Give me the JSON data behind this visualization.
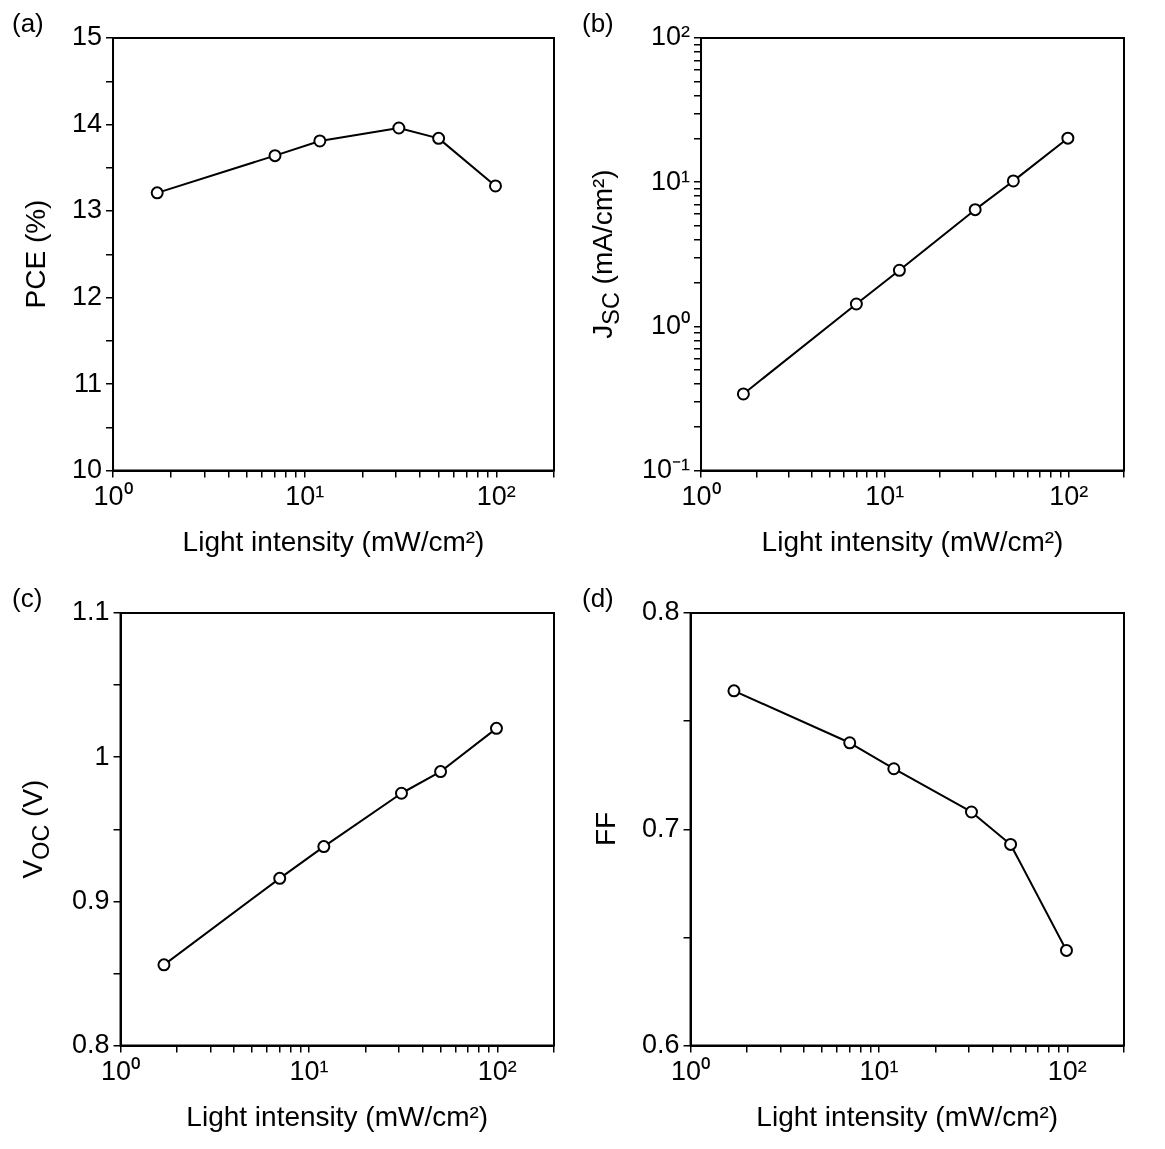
{
  "chart_data": [
    {
      "type": "line",
      "title": "(a)",
      "xlabel": "Light intensity (mW/cm²)",
      "ylabel": "PCE (%)",
      "log": "x",
      "grid": false,
      "legend": false,
      "marker": "circle",
      "line_style": "solid",
      "x": [
        1.7,
        7,
        12,
        31,
        50,
        99
      ],
      "series": [
        {
          "color": "#000000",
          "values": [
            13.21,
            13.64,
            13.81,
            13.96,
            13.84,
            13.29
          ]
        }
      ],
      "xlim": [
        1,
        200
      ],
      "ylim": [
        10,
        15
      ],
      "xticks": [
        {
          "value": 1,
          "label": "10⁰"
        },
        {
          "value": 2,
          "label": null
        },
        {
          "value": 3,
          "label": null
        },
        {
          "value": 4,
          "label": null
        },
        {
          "value": 5,
          "label": null
        },
        {
          "value": 6,
          "label": null
        },
        {
          "value": 7,
          "label": null
        },
        {
          "value": 8,
          "label": null
        },
        {
          "value": 9,
          "label": null
        },
        {
          "value": 10,
          "label": "10¹"
        },
        {
          "value": 20,
          "label": null
        },
        {
          "value": 30,
          "label": null
        },
        {
          "value": 40,
          "label": null
        },
        {
          "value": 50,
          "label": null
        },
        {
          "value": 60,
          "label": null
        },
        {
          "value": 70,
          "label": null
        },
        {
          "value": 80,
          "label": null
        },
        {
          "value": 90,
          "label": null
        },
        {
          "value": 100,
          "label": "10²"
        },
        {
          "value": 200,
          "label": null
        }
      ],
      "yticks": [
        10,
        {
          "value": 10.5,
          "label": null
        },
        11,
        {
          "value": 11.5,
          "label": null
        },
        12,
        {
          "value": 12.5,
          "label": null
        },
        13,
        {
          "value": 13.5,
          "label": null
        },
        14,
        {
          "value": 14.5,
          "label": null
        },
        15
      ]
    },
    {
      "type": "line",
      "title": "(b)",
      "xlabel": "Light intensity (mW/cm²)",
      "ylabel": "J$_{SC}$ (mA/cm²)",
      "log": "xy",
      "grid": false,
      "legend": false,
      "marker": "circle",
      "line_style": "solid",
      "x": [
        1.7,
        7,
        12,
        31,
        50,
        99
      ],
      "series": [
        {
          "color": "#000000",
          "values": [
            0.34,
            1.43,
            2.45,
            6.45,
            10.2,
            20.2
          ]
        }
      ],
      "xlim": [
        1,
        200
      ],
      "ylim": [
        0.1,
        100
      ],
      "xticks": [
        {
          "value": 1,
          "label": "10⁰"
        },
        {
          "value": 2,
          "label": null
        },
        {
          "value": 3,
          "label": null
        },
        {
          "value": 4,
          "label": null
        },
        {
          "value": 5,
          "label": null
        },
        {
          "value": 6,
          "label": null
        },
        {
          "value": 7,
          "label": null
        },
        {
          "value": 8,
          "label": null
        },
        {
          "value": 9,
          "label": null
        },
        {
          "value": 10,
          "label": "10¹"
        },
        {
          "value": 20,
          "label": null
        },
        {
          "value": 30,
          "label": null
        },
        {
          "value": 40,
          "label": null
        },
        {
          "value": 50,
          "label": null
        },
        {
          "value": 60,
          "label": null
        },
        {
          "value": 70,
          "label": null
        },
        {
          "value": 80,
          "label": null
        },
        {
          "value": 90,
          "label": null
        },
        {
          "value": 100,
          "label": "10²"
        },
        {
          "value": 200,
          "label": null
        }
      ],
      "yticks": [
        {
          "value": 0.1,
          "label": "10⁻¹"
        },
        {
          "value": 0.2,
          "label": null
        },
        {
          "value": 0.3,
          "label": null
        },
        {
          "value": 0.4,
          "label": null
        },
        {
          "value": 0.5,
          "label": null
        },
        {
          "value": 0.6,
          "label": null
        },
        {
          "value": 0.7,
          "label": null
        },
        {
          "value": 0.8,
          "label": null
        },
        {
          "value": 0.9,
          "label": null
        },
        {
          "value": 1,
          "label": "10⁰"
        },
        {
          "value": 2,
          "label": null
        },
        {
          "value": 3,
          "label": null
        },
        {
          "value": 4,
          "label": null
        },
        {
          "value": 5,
          "label": null
        },
        {
          "value": 6,
          "label": null
        },
        {
          "value": 7,
          "label": null
        },
        {
          "value": 8,
          "label": null
        },
        {
          "value": 9,
          "label": null
        },
        {
          "value": 10,
          "label": "10¹"
        },
        {
          "value": 20,
          "label": null
        },
        {
          "value": 30,
          "label": null
        },
        {
          "value": 40,
          "label": null
        },
        {
          "value": 50,
          "label": null
        },
        {
          "value": 60,
          "label": null
        },
        {
          "value": 70,
          "label": null
        },
        {
          "value": 80,
          "label": null
        },
        {
          "value": 90,
          "label": null
        },
        {
          "value": 100,
          "label": "10²"
        }
      ]
    },
    {
      "type": "line",
      "title": "(c)",
      "xlabel": "Light intensity (mW/cm²)",
      "ylabel": "V$_{OC}$ (V)",
      "log": "x",
      "grid": false,
      "legend": false,
      "marker": "circle",
      "line_style": "solid",
      "x": [
        1.7,
        7,
        12,
        31,
        50,
        99
      ],
      "series": [
        {
          "color": "#000000",
          "values": [
            0.856,
            0.916,
            0.938,
            0.975,
            0.99,
            1.02
          ]
        }
      ],
      "xlim": [
        1,
        200
      ],
      "ylim": [
        0.8,
        1.1
      ],
      "xticks": [
        {
          "value": 1,
          "label": "10⁰"
        },
        {
          "value": 2,
          "label": null
        },
        {
          "value": 3,
          "label": null
        },
        {
          "value": 4,
          "label": null
        },
        {
          "value": 5,
          "label": null
        },
        {
          "value": 6,
          "label": null
        },
        {
          "value": 7,
          "label": null
        },
        {
          "value": 8,
          "label": null
        },
        {
          "value": 9,
          "label": null
        },
        {
          "value": 10,
          "label": "10¹"
        },
        {
          "value": 20,
          "label": null
        },
        {
          "value": 30,
          "label": null
        },
        {
          "value": 40,
          "label": null
        },
        {
          "value": 50,
          "label": null
        },
        {
          "value": 60,
          "label": null
        },
        {
          "value": 70,
          "label": null
        },
        {
          "value": 80,
          "label": null
        },
        {
          "value": 90,
          "label": null
        },
        {
          "value": 100,
          "label": "10²"
        },
        {
          "value": 200,
          "label": null
        }
      ],
      "yticks": [
        0.8,
        {
          "value": 0.85,
          "label": null
        },
        0.9,
        {
          "value": 0.95,
          "label": null
        },
        {
          "value": 1,
          "label": "1"
        },
        {
          "value": 1.05,
          "label": null
        },
        1.1
      ]
    },
    {
      "type": "line",
      "title": "(d)",
      "xlabel": "Light intensity (mW/cm²)",
      "ylabel": "FF",
      "log": "x",
      "grid": false,
      "legend": false,
      "marker": "circle",
      "line_style": "solid",
      "x": [
        1.7,
        7,
        12,
        31,
        50,
        99
      ],
      "series": [
        {
          "color": "#000000",
          "values": [
            0.764,
            0.74,
            0.728,
            0.708,
            0.693,
            0.644
          ]
        }
      ],
      "xlim": [
        1,
        200
      ],
      "ylim": [
        0.6,
        0.8
      ],
      "xticks": [
        {
          "value": 1,
          "label": "10⁰"
        },
        {
          "value": 2,
          "label": null
        },
        {
          "value": 3,
          "label": null
        },
        {
          "value": 4,
          "label": null
        },
        {
          "value": 5,
          "label": null
        },
        {
          "value": 6,
          "label": null
        },
        {
          "value": 7,
          "label": null
        },
        {
          "value": 8,
          "label": null
        },
        {
          "value": 9,
          "label": null
        },
        {
          "value": 10,
          "label": "10¹"
        },
        {
          "value": 20,
          "label": null
        },
        {
          "value": 30,
          "label": null
        },
        {
          "value": 40,
          "label": null
        },
        {
          "value": 50,
          "label": null
        },
        {
          "value": 60,
          "label": null
        },
        {
          "value": 70,
          "label": null
        },
        {
          "value": 80,
          "label": null
        },
        {
          "value": 90,
          "label": null
        },
        {
          "value": 100,
          "label": "10²"
        },
        {
          "value": 200,
          "label": null
        }
      ],
      "yticks": [
        0.6,
        {
          "value": 0.65,
          "label": null
        },
        0.7,
        {
          "value": 0.75,
          "label": null
        },
        0.8
      ]
    }
  ]
}
